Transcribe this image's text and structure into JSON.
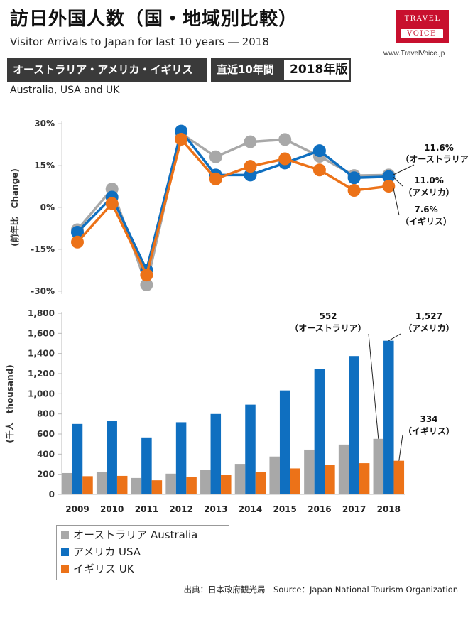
{
  "header": {
    "title": "訪日外国人数（国・地域別比較）",
    "subtitle": "Visitor Arrivals to Japan for last 10 years ― 2018",
    "logo_line1": "TRAVEL",
    "logo_line2": "VOICE",
    "url": "www.TravelVoice.jp",
    "tag_countries": "オーストラリア・アメリカ・イギリス",
    "tag_period": "直近10年間",
    "tag_edition": "2018年版",
    "countries_en": "Australia, USA and UK"
  },
  "colors": {
    "australia": "#a8a8a8",
    "usa": "#0f6fc0",
    "uk": "#ec7218",
    "tag_bg": "#3a3a3a",
    "logo": "#c8102e"
  },
  "legend": [
    {
      "series": "australia",
      "label": "オーストラリア Australia"
    },
    {
      "series": "usa",
      "label": "アメリカ USA"
    },
    {
      "series": "uk",
      "label": "イギリス UK"
    }
  ],
  "source": "出典：日本政府観光局　Source：Japan  National Tourism  Organization",
  "chart_data": [
    {
      "type": "line",
      "title": "",
      "ylabel": "(前年比　Change)",
      "ylim": [
        -30,
        30
      ],
      "yticks": [
        30,
        15,
        0,
        -15,
        -30
      ],
      "ytick_labels": [
        "30%",
        "15%",
        "0%",
        "-15%",
        "-30%"
      ],
      "categories": [
        "2009",
        "2010",
        "2011",
        "2012",
        "2013",
        "2014",
        "2015",
        "2016",
        "2017",
        "2018"
      ],
      "series": [
        {
          "key": "australia",
          "name": "オーストラリア",
          "values": [
            -8.0,
            6.6,
            -27.7,
            26.5,
            18.1,
            23.5,
            24.3,
            18.3,
            11.4,
            11.6
          ]
        },
        {
          "key": "usa",
          "name": "アメリカ",
          "values": [
            -8.9,
            3.7,
            -22.4,
            27.3,
            11.6,
            11.6,
            15.9,
            20.3,
            10.6,
            11.0
          ]
        },
        {
          "key": "uk",
          "name": "イギリス",
          "values": [
            -12.4,
            1.4,
            -24.2,
            24.4,
            10.2,
            14.7,
            17.4,
            13.4,
            6.1,
            7.6
          ]
        }
      ],
      "annotations": [
        {
          "series": "australia",
          "value_label": "11.6%",
          "name_label": "（オーストラリア）"
        },
        {
          "series": "usa",
          "value_label": "11.0%",
          "name_label": "（アメリカ）"
        },
        {
          "series": "uk",
          "value_label": "7.6%",
          "name_label": "（イギリス）"
        }
      ]
    },
    {
      "type": "bar",
      "title": "",
      "ylabel": "(千人　thousand)",
      "ylim": [
        0,
        1800
      ],
      "yticks": [
        0,
        200,
        400,
        600,
        800,
        1000,
        1200,
        1400,
        1600,
        1800
      ],
      "ytick_labels": [
        "0",
        "200",
        "400",
        "600",
        "800",
        "1,000",
        "1,200",
        "1,400",
        "1,600",
        "1,800"
      ],
      "categories": [
        "2009",
        "2010",
        "2011",
        "2012",
        "2013",
        "2014",
        "2015",
        "2016",
        "2017",
        "2018"
      ],
      "series": [
        {
          "key": "australia",
          "name": "オーストラリア Australia",
          "values": [
            212,
            226,
            163,
            206,
            245,
            303,
            376,
            445,
            495,
            552
          ]
        },
        {
          "key": "usa",
          "name": "アメリカ USA",
          "values": [
            700,
            727,
            566,
            717,
            799,
            892,
            1033,
            1243,
            1375,
            1527
          ]
        },
        {
          "key": "uk",
          "name": "イギリス UK",
          "values": [
            181,
            184,
            140,
            174,
            192,
            220,
            258,
            292,
            310,
            334
          ]
        }
      ],
      "annotations": [
        {
          "series": "australia",
          "value_label": "552",
          "name_label": "（オーストラリア）"
        },
        {
          "series": "usa",
          "value_label": "1,527",
          "name_label": "（アメリカ）"
        },
        {
          "series": "uk",
          "value_label": "334",
          "name_label": "（イギリス）"
        }
      ]
    }
  ]
}
